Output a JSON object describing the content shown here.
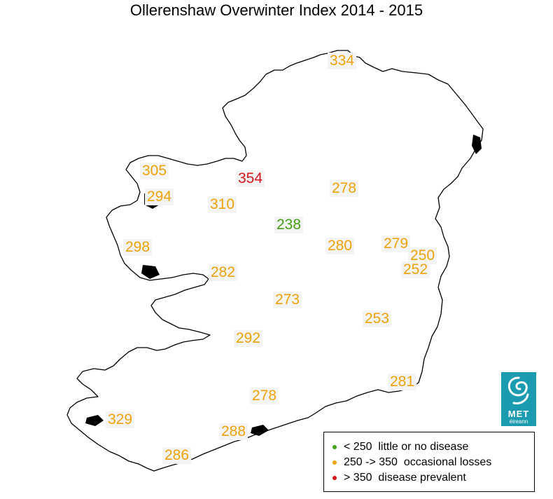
{
  "title": "Ollerenshaw Overwinter Index 2014 - 2015",
  "colors": {
    "low": "#43a017",
    "medium": "#eda20a",
    "high": "#d5161c",
    "coastline": "#000000",
    "logo": "#1a9bb0"
  },
  "stations": [
    {
      "value": "334",
      "category": "medium"
    },
    {
      "value": "305",
      "category": "medium"
    },
    {
      "value": "354",
      "category": "high"
    },
    {
      "value": "278",
      "category": "medium"
    },
    {
      "value": "294",
      "category": "medium"
    },
    {
      "value": "310",
      "category": "medium"
    },
    {
      "value": "238",
      "category": "low"
    },
    {
      "value": "298",
      "category": "medium"
    },
    {
      "value": "280",
      "category": "medium"
    },
    {
      "value": "279",
      "category": "medium"
    },
    {
      "value": "250",
      "category": "medium"
    },
    {
      "value": "252",
      "category": "medium"
    },
    {
      "value": "282",
      "category": "medium"
    },
    {
      "value": "273",
      "category": "medium"
    },
    {
      "value": "253",
      "category": "medium"
    },
    {
      "value": "292",
      "category": "medium"
    },
    {
      "value": "281",
      "category": "medium"
    },
    {
      "value": "278",
      "category": "medium"
    },
    {
      "value": "329",
      "category": "medium"
    },
    {
      "value": "288",
      "category": "medium"
    },
    {
      "value": "286",
      "category": "medium"
    }
  ],
  "legend": [
    {
      "label": "< 250  little or no disease",
      "category": "low"
    },
    {
      "label": "250 -> 350  occasional losses",
      "category": "medium"
    },
    {
      "label": "> 350  disease prevalent",
      "category": "high"
    }
  ],
  "logo": {
    "name": "met-eireann-logo",
    "text_top": "MET",
    "text_bottom": "éireann"
  }
}
